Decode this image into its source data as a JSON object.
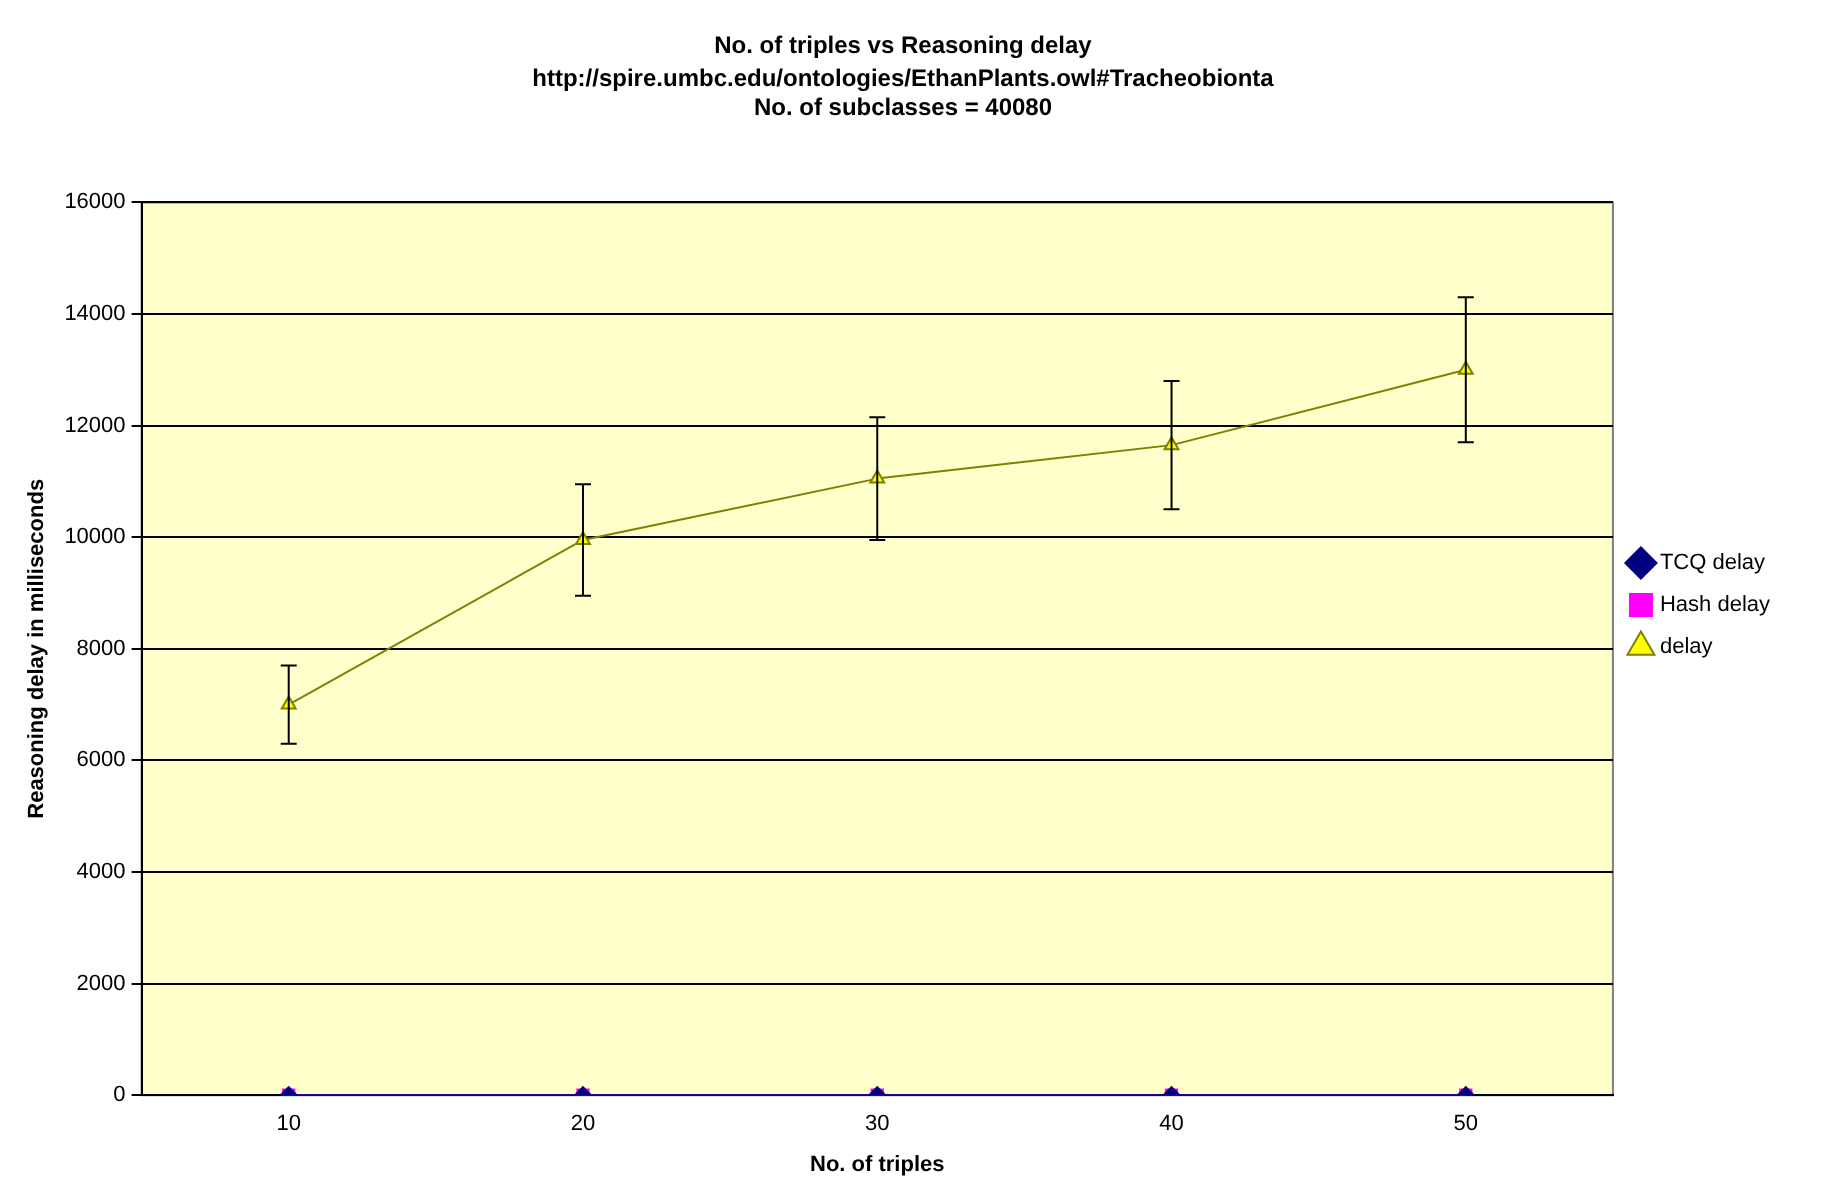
{
  "chart_data": {
    "type": "line",
    "title": "No. of triples vs Reasoning delay",
    "subtitle": [
      "http://spire.umbc.edu/ontologies/EthanPlants.owl#Tracheobionta",
      "No. of subclasses = 40080"
    ],
    "xlabel": "No. of triples",
    "ylabel": "Reasoning delay in milliseconds",
    "categories": [
      "10",
      "20",
      "30",
      "40",
      "50"
    ],
    "series": [
      {
        "name": "TCQ delay",
        "color": "#000080",
        "marker": "diamond",
        "values": [
          0,
          0,
          0,
          0,
          0
        ]
      },
      {
        "name": "Hash delay",
        "color": "#ff00ff",
        "marker": "square",
        "values": [
          0,
          0,
          0,
          0,
          0
        ]
      },
      {
        "name": "delay",
        "color": "#808000",
        "marker": "triangle",
        "values": [
          7000,
          9950,
          11050,
          11650,
          13000
        ],
        "errors": [
          700,
          1000,
          1100,
          1150,
          1300
        ]
      }
    ],
    "ylim": [
      0,
      16000
    ],
    "yticks": [
      0,
      2000,
      4000,
      6000,
      8000,
      10000,
      12000,
      14000,
      16000
    ],
    "grid": "y",
    "legend": "right"
  }
}
